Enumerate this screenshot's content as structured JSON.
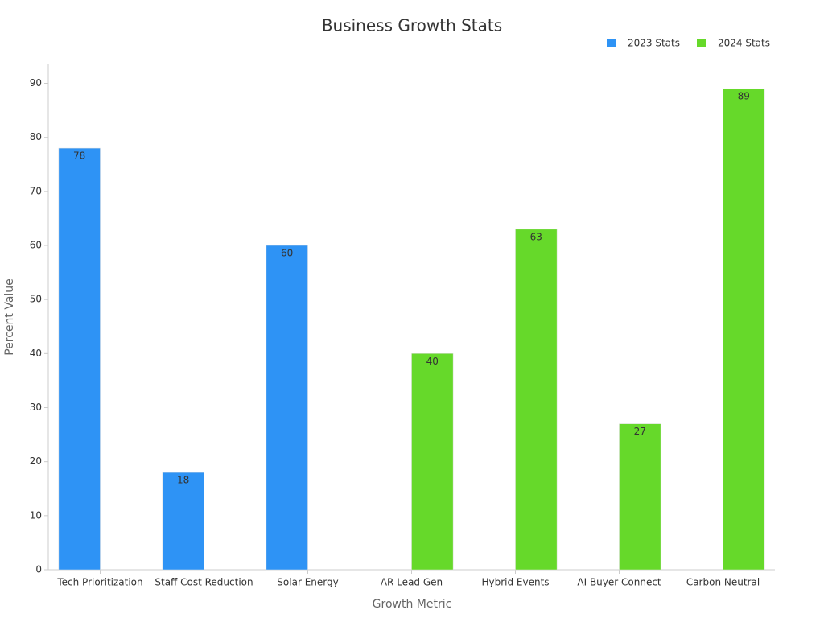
{
  "chart_data": {
    "type": "bar",
    "title": "Business Growth Stats",
    "x_label": "Growth Metric",
    "y_label": "Percent Value",
    "categories": [
      "Tech Prioritization",
      "Staff Cost Reduction",
      "Solar Energy",
      "AR Lead Gen",
      "Hybrid Events",
      "AI Buyer Connect",
      "Carbon Neutral"
    ],
    "series": [
      {
        "name": "2023 Stats",
        "color": "#2e93f5",
        "values": [
          78,
          18,
          60,
          null,
          null,
          null,
          null
        ]
      },
      {
        "name": "2024 Stats",
        "color": "#66d92a",
        "values": [
          null,
          null,
          null,
          40,
          63,
          27,
          89
        ]
      }
    ],
    "ylim": [
      0,
      93.5
    ],
    "yticks": [
      0,
      10,
      20,
      30,
      40,
      50,
      60,
      70,
      80,
      90
    ],
    "grid": false,
    "legend": "top-right"
  }
}
